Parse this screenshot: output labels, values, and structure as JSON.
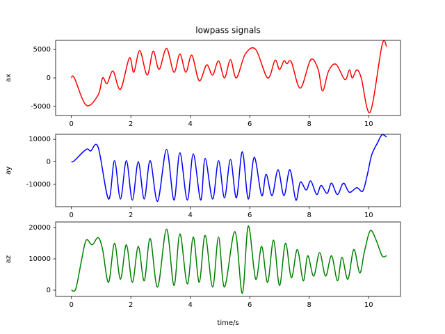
{
  "chart_data": [
    {
      "type": "line",
      "title": "lowpass signals",
      "ylabel": "ax",
      "color": "#ff0000",
      "x": [
        0,
        0.1,
        0.5,
        0.9,
        1.05,
        1.2,
        1.4,
        1.65,
        1.95,
        2.1,
        2.3,
        2.55,
        2.75,
        2.95,
        3.2,
        3.45,
        3.65,
        3.85,
        4.05,
        4.3,
        4.55,
        4.75,
        4.95,
        5.15,
        5.35,
        5.55,
        5.85,
        6.2,
        6.6,
        6.85,
        7.0,
        7.15,
        7.25,
        7.4,
        7.7,
        8.05,
        8.3,
        8.45,
        8.65,
        8.9,
        9.2,
        9.35,
        9.45,
        9.6,
        9.75,
        10.05,
        10.45,
        10.6
      ],
      "values": [
        0,
        0,
        -4800,
        -3000,
        0,
        -1000,
        1200,
        -2000,
        3500,
        1000,
        4800,
        500,
        4700,
        1500,
        5200,
        1000,
        4200,
        1000,
        4000,
        -500,
        2300,
        500,
        3000,
        0,
        3200,
        0,
        4200,
        5000,
        0,
        3100,
        1500,
        3000,
        2500,
        2800,
        -1800,
        3200,
        1500,
        -2300,
        1200,
        2400,
        -300,
        1400,
        0,
        1400,
        0,
        -6000,
        5800,
        5500
      ],
      "xlim": [
        -0.53,
        11.07
      ],
      "xticks": [
        0,
        2,
        4,
        6,
        8,
        10
      ],
      "ylim": [
        -6600,
        6600
      ],
      "yticks": [
        -5000,
        0,
        5000
      ]
    },
    {
      "type": "line",
      "ylabel": "ay",
      "color": "#0000ff",
      "x": [
        0,
        0.1,
        0.5,
        0.65,
        0.9,
        1.25,
        1.45,
        1.65,
        1.85,
        2.05,
        2.25,
        2.45,
        2.65,
        2.9,
        3.2,
        3.45,
        3.65,
        3.9,
        4.1,
        4.35,
        4.5,
        4.75,
        4.95,
        5.15,
        5.35,
        5.55,
        5.75,
        5.95,
        6.15,
        6.4,
        6.55,
        6.75,
        6.95,
        7.15,
        7.35,
        7.55,
        7.7,
        7.9,
        8.05,
        8.25,
        8.4,
        8.6,
        8.75,
        8.95,
        9.15,
        9.35,
        9.6,
        9.8,
        9.95,
        10.1,
        10.3,
        10.45,
        10.6
      ],
      "values": [
        0,
        500,
        5500,
        4800,
        6500,
        -16500,
        500,
        -16500,
        500,
        -17000,
        0,
        -16500,
        500,
        -17500,
        5500,
        -17000,
        4000,
        -17000,
        3500,
        -17000,
        1500,
        -16500,
        500,
        -16000,
        1000,
        -16000,
        4500,
        -16500,
        2000,
        -15000,
        -5500,
        -15000,
        -3500,
        -15000,
        -3500,
        -17000,
        -9000,
        -12500,
        -8500,
        -14500,
        -10500,
        -14000,
        -9500,
        -14500,
        -9500,
        -13500,
        -11500,
        -13000,
        -6000,
        3000,
        8500,
        12000,
        11000
      ],
      "xlim": [
        -0.53,
        11.07
      ],
      "xticks": [
        0,
        2,
        4,
        6,
        8,
        10
      ],
      "ylim": [
        -19900,
        12200
      ],
      "yticks": [
        -10000,
        0,
        10000
      ]
    },
    {
      "type": "line",
      "ylabel": "az",
      "xlabel": "time/s",
      "color": "#008000",
      "x": [
        0,
        0.15,
        0.35,
        0.5,
        0.7,
        0.9,
        1.05,
        1.25,
        1.45,
        1.65,
        1.85,
        2.05,
        2.25,
        2.45,
        2.65,
        2.9,
        3.2,
        3.45,
        3.65,
        3.9,
        4.1,
        4.3,
        4.5,
        4.75,
        4.95,
        5.15,
        5.5,
        5.75,
        5.95,
        6.2,
        6.4,
        6.6,
        6.8,
        7.0,
        7.2,
        7.4,
        7.6,
        7.8,
        7.95,
        8.15,
        8.35,
        8.55,
        8.75,
        8.95,
        9.1,
        9.3,
        9.5,
        9.7,
        9.85,
        10.05,
        10.25,
        10.45,
        10.6
      ],
      "values": [
        0,
        500,
        10000,
        16000,
        14500,
        16800,
        13000,
        2500,
        15000,
        3500,
        14500,
        2500,
        14000,
        3000,
        16500,
        1000,
        19500,
        1500,
        18000,
        2000,
        17000,
        2500,
        17500,
        1000,
        17000,
        1000,
        18700,
        -1000,
        20500,
        3500,
        14000,
        2500,
        16000,
        1500,
        15000,
        4000,
        13000,
        3000,
        11000,
        4500,
        12000,
        4500,
        11000,
        3000,
        10500,
        3500,
        13000,
        5500,
        12000,
        19000,
        16000,
        11000,
        11000
      ],
      "xlim": [
        -0.53,
        11.07
      ],
      "xticks": [
        0,
        2,
        4,
        6,
        8,
        10
      ],
      "ylim": [
        -2000,
        21800
      ],
      "yticks": [
        0,
        10000,
        20000
      ]
    }
  ]
}
